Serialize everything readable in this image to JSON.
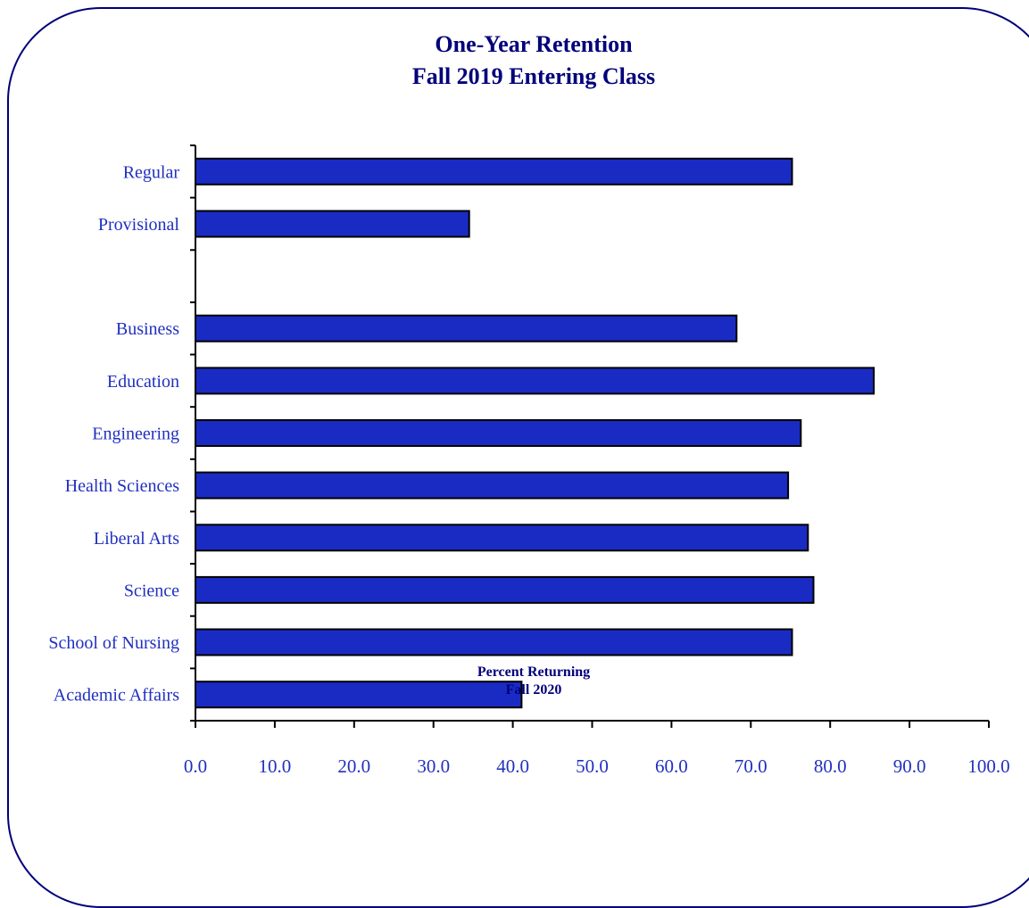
{
  "chart_data": {
    "type": "bar",
    "orientation": "horizontal",
    "title": [
      "One-Year Retention",
      "Fall 2019 Entering Class"
    ],
    "xlabel": [
      "Percent Returning",
      "Fall 2020"
    ],
    "ylabel": "",
    "xlim": [
      0,
      100
    ],
    "xticks": [
      "0.0",
      "10.0",
      "20.0",
      "30.0",
      "40.0",
      "50.0",
      "60.0",
      "70.0",
      "80.0",
      "90.0",
      "100.0"
    ],
    "categories": [
      "Regular",
      "Provisional",
      "",
      "Business",
      "Education",
      "Engineering",
      "Health Sciences",
      "Liberal Arts",
      "Science",
      "School of Nursing",
      "Academic Affairs"
    ],
    "values": [
      75.2,
      34.5,
      null,
      68.2,
      85.5,
      76.3,
      74.7,
      77.2,
      77.9,
      75.2,
      41.1
    ],
    "grid": false,
    "legend": "none",
    "colors": {
      "bar": "#1a2bc4",
      "bar_outline": "#000000",
      "text": "#2030c0",
      "title": "#00007a",
      "frame": "#00007a"
    }
  }
}
